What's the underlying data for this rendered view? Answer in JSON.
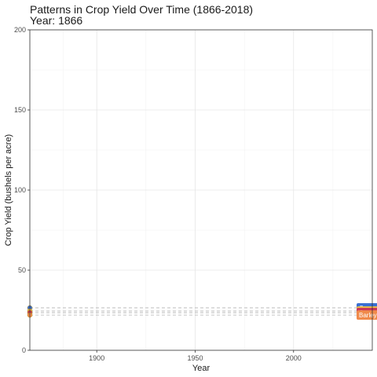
{
  "chart_data": {
    "type": "line",
    "title": "Patterns in Crop Yield Over Time (1866-2018)",
    "subtitle": "Year: 1866",
    "xlabel": "Year",
    "ylabel": "Crop Yield (bushels per acre)",
    "xlim": [
      1866,
      2040
    ],
    "ylim": [
      0,
      200
    ],
    "x_ticks": [
      1900,
      1950,
      2000
    ],
    "y_ticks": [
      0,
      50,
      100,
      150,
      200
    ],
    "grid": true,
    "series": [
      {
        "name": "Corn",
        "color": "#3a6fd1",
        "x": [
          1866
        ],
        "y": [
          26.5
        ]
      },
      {
        "name": "Wheat",
        "color": "#e8b84a",
        "x": [
          1866
        ],
        "y": [
          24.5
        ]
      },
      {
        "name": "Oats",
        "color": "#c9365a",
        "x": [
          1866
        ],
        "y": [
          23.5
        ]
      },
      {
        "name": "Barley",
        "color": "#f08a4b",
        "x": [
          1866
        ],
        "y": [
          22
        ]
      }
    ]
  }
}
